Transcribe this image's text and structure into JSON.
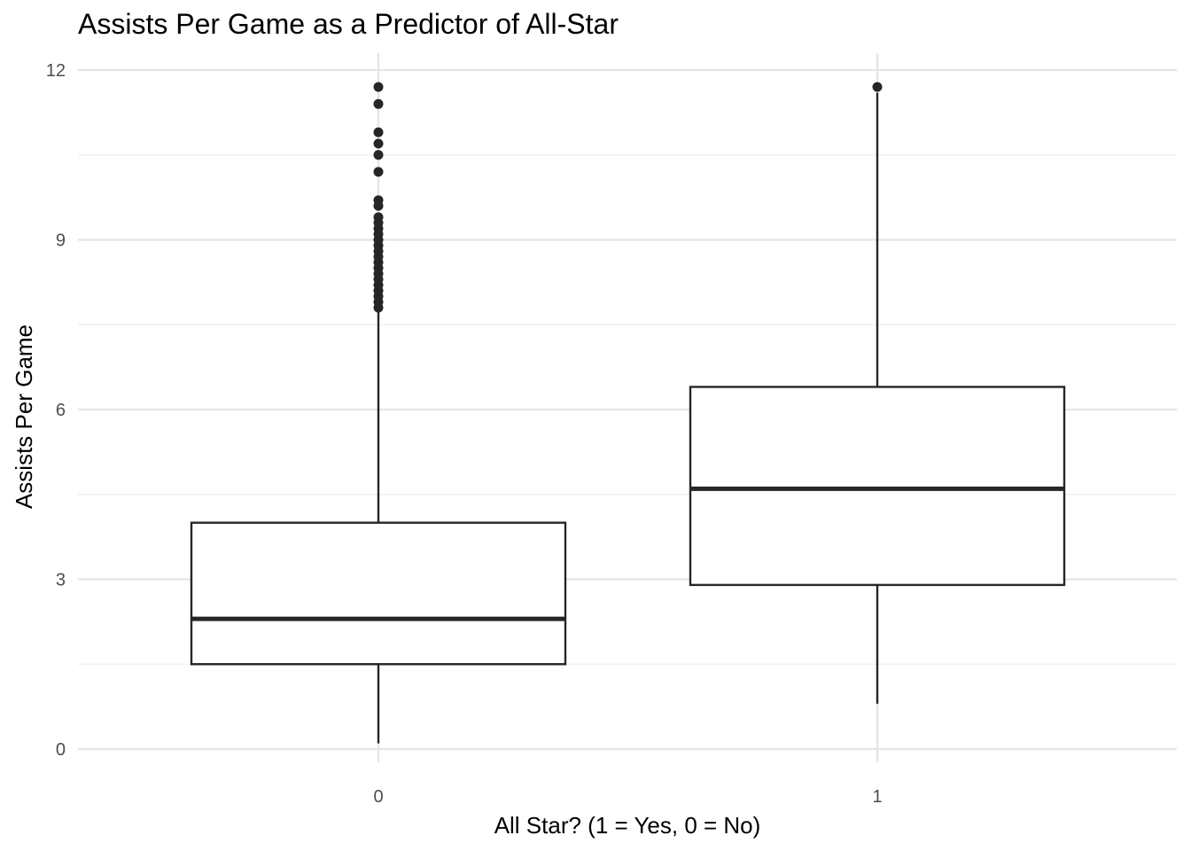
{
  "chart_data": {
    "type": "boxplot",
    "title": "Assists Per Game as a Predictor of All-Star",
    "xlabel": "All Star? (1 = Yes, 0 = No)",
    "ylabel": "Assists Per Game",
    "categories": [
      "0",
      "1"
    ],
    "ylim": [
      0,
      12
    ],
    "yticks": [
      0,
      3,
      6,
      9,
      12
    ],
    "ytick_labels": [
      "0",
      "3",
      "6",
      "9",
      "12"
    ],
    "grid": true,
    "boxes": [
      {
        "category": "0",
        "whisker_low": 0.1,
        "q1": 1.5,
        "median": 2.3,
        "q3": 4.0,
        "whisker_high": 7.8,
        "outliers": [
          7.8,
          7.9,
          8.0,
          8.1,
          8.2,
          8.3,
          8.4,
          8.5,
          8.6,
          8.7,
          8.8,
          8.9,
          9.0,
          9.1,
          9.2,
          9.3,
          9.4,
          9.6,
          9.7,
          10.2,
          10.5,
          10.7,
          10.9,
          11.4,
          11.7
        ]
      },
      {
        "category": "1",
        "whisker_low": 0.8,
        "q1": 2.9,
        "median": 4.6,
        "q3": 6.4,
        "whisker_high": 11.6,
        "outliers": [
          11.7
        ]
      }
    ],
    "colors": {
      "box_stroke": "#262626",
      "box_fill": "#ffffff",
      "grid_major": "#e5e5e5",
      "grid_minor": "#eeeeee"
    }
  }
}
